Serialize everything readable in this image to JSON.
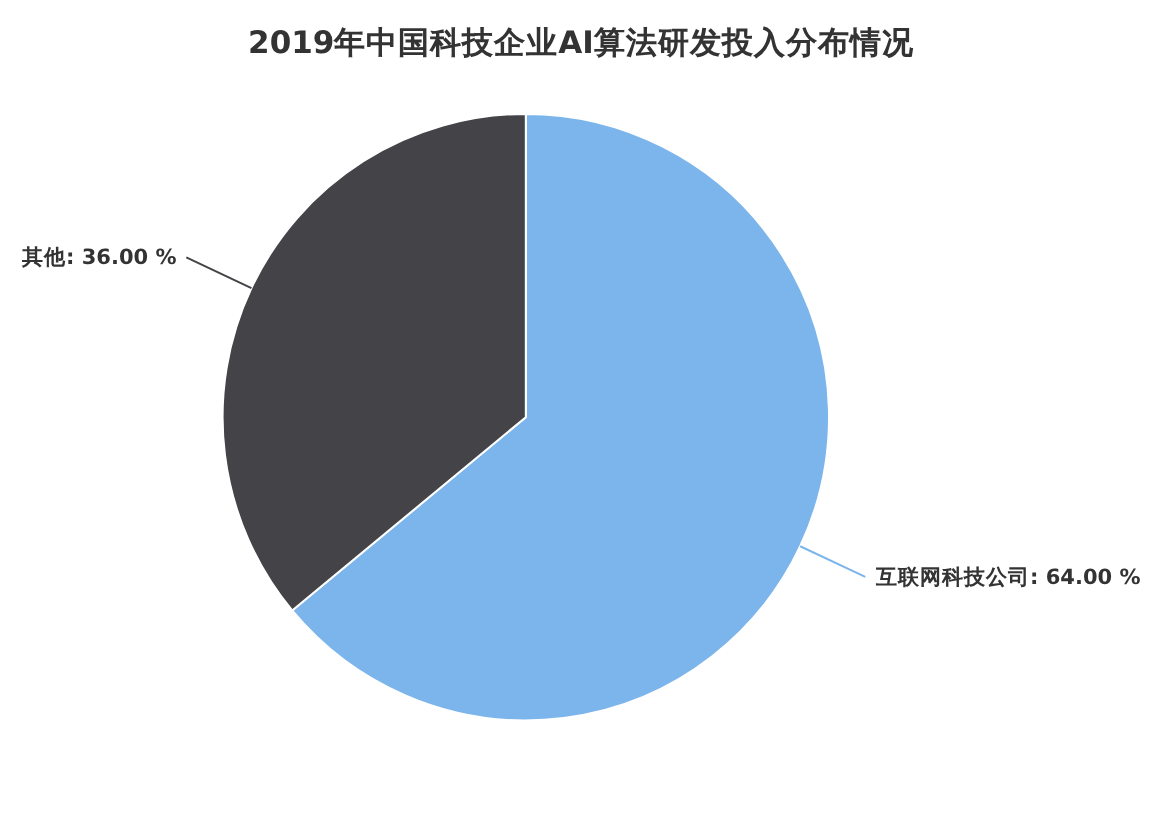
{
  "chart_data": {
    "type": "pie",
    "title": "2019年中国科技企业AI算法研发投入分布情况",
    "categories": [
      "互联网科技公司",
      "其他"
    ],
    "values": [
      64,
      36
    ],
    "colors": [
      "#7cb5ec",
      "#434348"
    ],
    "value_labels": [
      "64.00 %",
      "36.00 %"
    ]
  }
}
